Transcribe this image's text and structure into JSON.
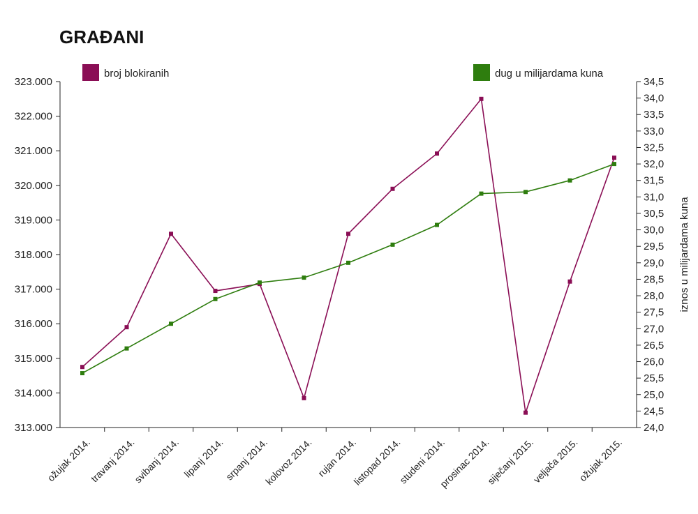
{
  "chart_data": {
    "type": "line",
    "title": "GRAĐANI",
    "categories": [
      "ožujak 2014.",
      "travanj 2014.",
      "svibanj 2014.",
      "lipanj 2014.",
      "srpanj 2014.",
      "kolovoz 2014.",
      "rujan 2014.",
      "listopad 2014.",
      "studeni 2014.",
      "prosinac 2014.",
      "siječanj 2015.",
      "veljača 2015.",
      "ožujak 2015."
    ],
    "series": [
      {
        "name": "broj blokiranih",
        "axis": "left",
        "color": "#8a0e55",
        "values": [
          314750,
          315900,
          318600,
          316950,
          317150,
          313850,
          318600,
          319900,
          320920,
          322500,
          313430,
          317220,
          320800
        ]
      },
      {
        "name": "dug u milijardama kuna",
        "axis": "right",
        "color": "#2e7d0e",
        "values": [
          25.65,
          26.4,
          27.15,
          27.9,
          28.4,
          28.55,
          29.0,
          29.55,
          30.15,
          31.1,
          31.15,
          31.5,
          32.0
        ]
      }
    ],
    "y_left": {
      "ylim": [
        313000,
        323000
      ],
      "ticks": [
        "313.000",
        "314.000",
        "315.000",
        "316.000",
        "317.000",
        "318.000",
        "319.000",
        "320.000",
        "321.000",
        "322.000",
        "323.000"
      ]
    },
    "y_right": {
      "label": "iznos u milijardama kuna",
      "ylim": [
        24.0,
        34.5
      ],
      "ticks": [
        "24,0",
        "24,5",
        "25,0",
        "25,5",
        "26,0",
        "26,5",
        "27,0",
        "27,5",
        "28,0",
        "28,5",
        "29,0",
        "29,5",
        "30,0",
        "30,5",
        "31,0",
        "31,5",
        "32,0",
        "32,5",
        "33,0",
        "33,5",
        "34,0",
        "34,5"
      ]
    },
    "legend": [
      "top-left",
      "top-right"
    ],
    "grid": false
  }
}
